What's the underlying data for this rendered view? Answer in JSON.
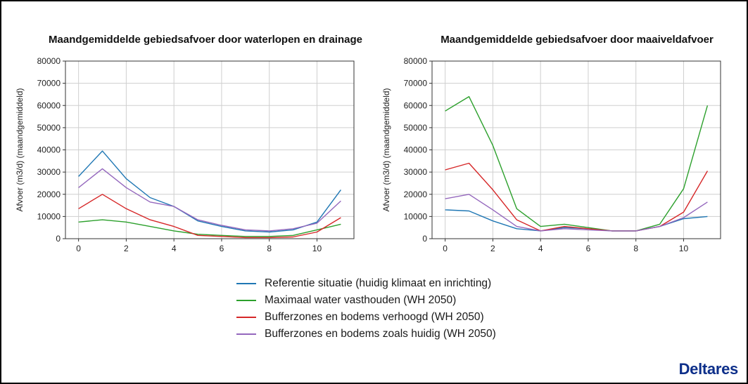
{
  "colors": {
    "blue": "#1f77b4",
    "green": "#2ca02c",
    "red": "#d62728",
    "purple": "#9467bd",
    "logo": "#0d2f8a"
  },
  "legend": {
    "items": [
      {
        "label": "Referentie situatie (huidig klimaat en inrichting)",
        "color": "#1f77b4"
      },
      {
        "label": "Maximaal water vasthouden (WH 2050)",
        "color": "#2ca02c"
      },
      {
        "label": "Bufferzones en bodems verhoogd (WH 2050)",
        "color": "#d62728"
      },
      {
        "label": "Bufferzones en bodems zoals huidig (WH 2050)",
        "color": "#9467bd"
      }
    ]
  },
  "logo": {
    "text": "Deltares"
  },
  "chart_data": [
    {
      "type": "line",
      "title": "Maandgemiddelde gebiedsafvoer door waterlopen en drainage",
      "xlabel": "",
      "ylabel": "Afvoer (m3/d) (maandgemiddeld)",
      "xlim": [
        -0.55,
        11.55
      ],
      "ylim": [
        0,
        80000
      ],
      "xticks": [
        0,
        2,
        4,
        6,
        8,
        10
      ],
      "yticks": [
        0,
        10000,
        20000,
        30000,
        40000,
        50000,
        60000,
        70000,
        80000
      ],
      "grid": true,
      "x": [
        0,
        1,
        2,
        3,
        4,
        5,
        6,
        7,
        8,
        9,
        10,
        11
      ],
      "series": [
        {
          "name": "Referentie situatie (huidig klimaat en inrichting)",
          "color": "#1f77b4",
          "values": [
            28000,
            39500,
            27000,
            18500,
            14500,
            8000,
            5500,
            3500,
            3000,
            4000,
            7500,
            22000
          ]
        },
        {
          "name": "Maximaal water vasthouden (WH 2050)",
          "color": "#2ca02c",
          "values": [
            7500,
            8500,
            7500,
            5500,
            3500,
            2000,
            1500,
            1000,
            1000,
            1500,
            4000,
            6500
          ]
        },
        {
          "name": "Bufferzones en bodems verhoogd (WH 2050)",
          "color": "#d62728",
          "values": [
            13500,
            20000,
            13500,
            8500,
            5500,
            1500,
            1000,
            500,
            500,
            800,
            3000,
            9500
          ]
        },
        {
          "name": "Bufferzones en bodems zoals huidig (WH 2050)",
          "color": "#9467bd",
          "values": [
            23000,
            31500,
            23000,
            16500,
            14500,
            8500,
            6000,
            4000,
            3500,
            4500,
            7000,
            17000
          ]
        }
      ]
    },
    {
      "type": "line",
      "title": "Maandgemiddelde gebiedsafvoer door maaiveldafvoer",
      "xlabel": "",
      "ylabel": "Afvoer (m3/d) (maandgemiddeld)",
      "xlim": [
        -0.55,
        11.55
      ],
      "ylim": [
        0,
        80000
      ],
      "xticks": [
        0,
        2,
        4,
        6,
        8,
        10
      ],
      "yticks": [
        0,
        10000,
        20000,
        30000,
        40000,
        50000,
        60000,
        70000,
        80000
      ],
      "grid": true,
      "x": [
        0,
        1,
        2,
        3,
        4,
        5,
        6,
        7,
        8,
        9,
        10,
        11
      ],
      "series": [
        {
          "name": "Referentie situatie (huidig klimaat en inrichting)",
          "color": "#1f77b4",
          "values": [
            13000,
            12500,
            8000,
            4500,
            3500,
            5000,
            4500,
            3500,
            3500,
            5500,
            9000,
            10000
          ]
        },
        {
          "name": "Maximaal water vasthouden (WH 2050)",
          "color": "#2ca02c",
          "values": [
            57500,
            64000,
            42000,
            13500,
            5500,
            6500,
            5000,
            3500,
            3500,
            6500,
            22500,
            60000
          ]
        },
        {
          "name": "Bufferzones en bodems verhoogd (WH 2050)",
          "color": "#d62728",
          "values": [
            31000,
            34000,
            22000,
            8500,
            3500,
            5500,
            4500,
            3500,
            3500,
            5500,
            12000,
            30500
          ]
        },
        {
          "name": "Bufferzones en bodems zoals huidig (WH 2050)",
          "color": "#9467bd",
          "values": [
            18000,
            20000,
            13000,
            5500,
            3500,
            4500,
            4000,
            3500,
            3500,
            5500,
            9500,
            16500
          ]
        }
      ]
    }
  ]
}
